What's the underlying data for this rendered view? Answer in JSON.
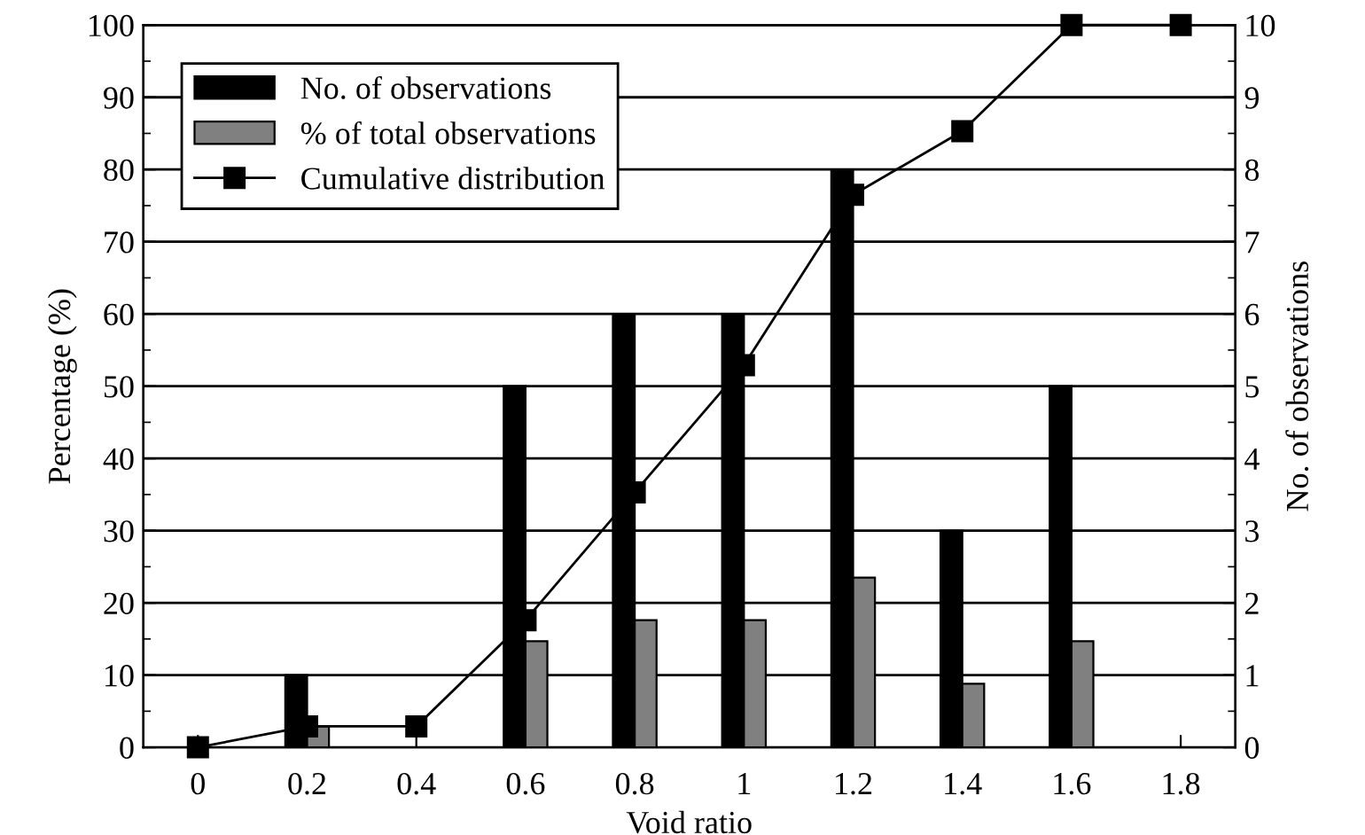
{
  "chart_data": {
    "type": "bar",
    "xlabel": "Void ratio",
    "ylabel": "Percentage (%)",
    "y2label": "No. of observations",
    "categories": [
      "0",
      "0.2",
      "0.4",
      "0.6",
      "0.8",
      "1",
      "1.2",
      "1.4",
      "1.6",
      "1.8"
    ],
    "series": [
      {
        "name": "No. of observations",
        "axis": "y2",
        "color": "#000000",
        "values": [
          null,
          1,
          null,
          5,
          6,
          6,
          8,
          3,
          5,
          null
        ]
      },
      {
        "name": "% of total observations",
        "color": "#808080",
        "values": [
          null,
          2.9,
          null,
          14.7,
          17.6,
          17.6,
          23.5,
          8.8,
          14.7,
          null
        ]
      },
      {
        "name": "Cumulative distribution",
        "type": "line",
        "color": "#000000",
        "marker": "square",
        "values": [
          0,
          2.9,
          2.9,
          17.6,
          35.3,
          52.9,
          76.5,
          85.3,
          100,
          100
        ]
      }
    ],
    "ylim": [
      0,
      100
    ],
    "yticks": [
      0,
      10,
      20,
      30,
      40,
      50,
      60,
      70,
      80,
      90,
      100
    ],
    "y2lim": [
      0,
      10
    ],
    "y2ticks": [
      0,
      1,
      2,
      3,
      4,
      5,
      6,
      7,
      8,
      9,
      10
    ],
    "grid": "y",
    "legend": "top left"
  }
}
